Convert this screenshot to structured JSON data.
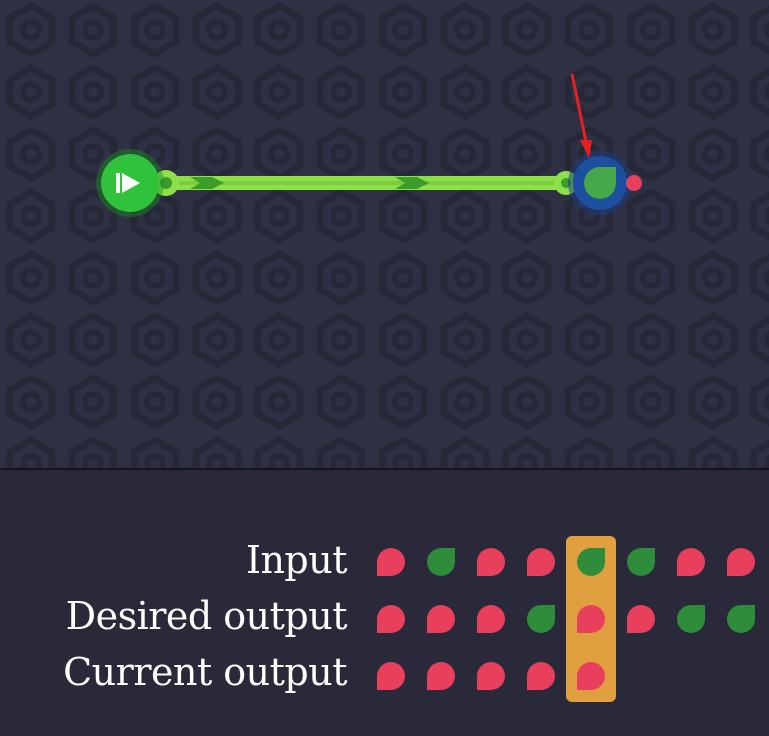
{
  "colors": {
    "red": "#e8405c",
    "green": "#2e8c3a",
    "wire": "#8ee04a",
    "wire_dark": "#3c9c2a",
    "source": "#2fc23a",
    "sink_ring": "#1c4fa0",
    "sink_core": "#44a84a",
    "highlight": "#e0a040",
    "annotation_arrow": "#e62020"
  },
  "board": {
    "source_icon": "play-icon",
    "sink_icon": "leaf-icon",
    "annotation": "arrow-pointing-at-sink"
  },
  "sequence": {
    "labels": {
      "input": "Input",
      "desired": "Desired output",
      "current": "Current output"
    },
    "highlight_index": 4,
    "input": [
      "red",
      "green",
      "red",
      "red",
      "green",
      "green",
      "red",
      "red"
    ],
    "desired": [
      "red",
      "red",
      "red",
      "green",
      "red",
      "red",
      "green",
      "green"
    ],
    "current": [
      "red",
      "red",
      "red",
      "red",
      "red"
    ]
  }
}
